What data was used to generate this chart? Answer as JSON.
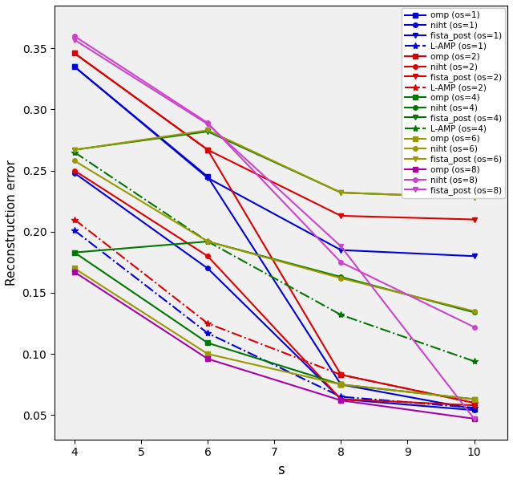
{
  "x": [
    4,
    6,
    8,
    10
  ],
  "series": [
    {
      "label": "omp (os=1)",
      "color": "#0000dd",
      "ls": "-",
      "marker": "s",
      "ms": 4,
      "lw": 1.5,
      "y": [
        0.335,
        0.245,
        0.075,
        0.055
      ]
    },
    {
      "label": "niht (os=1)",
      "color": "#0000dd",
      "ls": "-",
      "marker": "o",
      "ms": 4,
      "lw": 1.5,
      "y": [
        0.248,
        0.17,
        0.063,
        0.054
      ]
    },
    {
      "label": "fista_post (os=1)",
      "color": "#0000dd",
      "ls": "-",
      "marker": "v",
      "ms": 5,
      "lw": 1.5,
      "y": [
        0.335,
        0.244,
        0.185,
        0.18
      ]
    },
    {
      "label": "L-AMP (os=1)",
      "color": "#0000dd",
      "ls": "-.",
      "marker": "*",
      "ms": 6,
      "lw": 1.5,
      "y": [
        0.201,
        0.117,
        0.065,
        0.056
      ]
    },
    {
      "label": "omp (os=2)",
      "color": "#dd0000",
      "ls": "-",
      "marker": "s",
      "ms": 4,
      "lw": 1.5,
      "y": [
        0.346,
        0.267,
        0.083,
        0.06
      ]
    },
    {
      "label": "niht (os=2)",
      "color": "#dd0000",
      "ls": "-",
      "marker": "o",
      "ms": 4,
      "lw": 1.5,
      "y": [
        0.25,
        0.18,
        0.063,
        0.058
      ]
    },
    {
      "label": "fista_post (os=2)",
      "color": "#dd0000",
      "ls": "-",
      "marker": "v",
      "ms": 5,
      "lw": 1.5,
      "y": [
        0.346,
        0.267,
        0.213,
        0.21
      ]
    },
    {
      "label": "L-AMP (os=2)",
      "color": "#dd0000",
      "ls": "-.",
      "marker": "*",
      "ms": 6,
      "lw": 1.5,
      "y": [
        0.21,
        0.125,
        0.083,
        0.06
      ]
    },
    {
      "label": "omp (os=4)",
      "color": "#007700",
      "ls": "-",
      "marker": "s",
      "ms": 4,
      "lw": 1.5,
      "y": [
        0.183,
        0.109,
        0.075,
        0.063
      ]
    },
    {
      "label": "niht (os=4)",
      "color": "#007700",
      "ls": "-",
      "marker": "o",
      "ms": 4,
      "lw": 1.5,
      "y": [
        0.183,
        0.192,
        0.163,
        0.134
      ]
    },
    {
      "label": "fista_post (os=4)",
      "color": "#007700",
      "ls": "-",
      "marker": "v",
      "ms": 5,
      "lw": 1.5,
      "y": [
        0.267,
        0.282,
        0.232,
        0.228
      ]
    },
    {
      "label": "L-AMP (os=4)",
      "color": "#007700",
      "ls": "-.",
      "marker": "*",
      "ms": 6,
      "lw": 1.5,
      "y": [
        0.265,
        0.192,
        0.132,
        0.094
      ]
    },
    {
      "label": "omp (os=6)",
      "color": "#999900",
      "ls": "-",
      "marker": "s",
      "ms": 4,
      "lw": 1.5,
      "y": [
        0.17,
        0.1,
        0.075,
        0.063
      ]
    },
    {
      "label": "niht (os=6)",
      "color": "#999900",
      "ls": "-",
      "marker": "o",
      "ms": 4,
      "lw": 1.5,
      "y": [
        0.258,
        0.192,
        0.162,
        0.135
      ]
    },
    {
      "label": "fista_post (os=6)",
      "color": "#999900",
      "ls": "-",
      "marker": "v",
      "ms": 5,
      "lw": 1.5,
      "y": [
        0.267,
        0.283,
        0.232,
        0.228
      ]
    },
    {
      "label": "omp (os=8)",
      "color": "#aa00aa",
      "ls": "-",
      "marker": "s",
      "ms": 4,
      "lw": 1.5,
      "y": [
        0.167,
        0.096,
        0.062,
        0.047
      ]
    },
    {
      "label": "niht (os=8)",
      "color": "#cc44cc",
      "ls": "-",
      "marker": "o",
      "ms": 4,
      "lw": 1.5,
      "y": [
        0.36,
        0.289,
        0.175,
        0.122
      ]
    },
    {
      "label": "fista_post (os=8)",
      "color": "#cc44cc",
      "ls": "-",
      "marker": "v",
      "ms": 5,
      "lw": 1.5,
      "y": [
        0.357,
        0.288,
        0.188,
        0.047
      ]
    }
  ],
  "xlabel": "s",
  "ylabel": "Reconstruction error",
  "xlim": [
    3.7,
    10.5
  ],
  "ylim": [
    0.03,
    0.385
  ],
  "xticks": [
    4,
    5,
    6,
    7,
    8,
    9,
    10
  ],
  "yticks": [
    0.05,
    0.1,
    0.15,
    0.2,
    0.25,
    0.3,
    0.35
  ],
  "figsize": [
    6.4,
    6.02
  ],
  "dpi": 100
}
